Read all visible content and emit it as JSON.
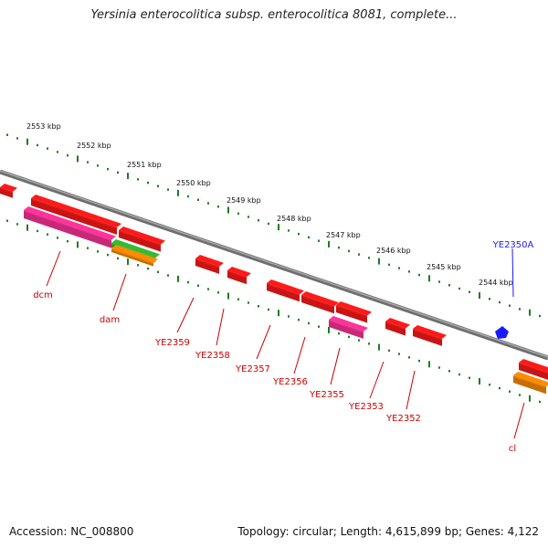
{
  "title": "Yersinia enterocolitica subsp. enterocolitica 8081, complete...",
  "footer": {
    "accession": "Accession: NC_008800",
    "topology": "Topology: circular; Length: 4,615,899 bp; Genes: 4,122"
  },
  "colors": {
    "backbone": "#8a8a8a",
    "tick": "#1e7d1e",
    "gene": "#ff1a1a",
    "gene_label": "#cc0000",
    "pink": "#ff3399",
    "green": "#33bb33",
    "orange": "#ff8c00",
    "blue": "#1a1aff"
  },
  "scale_labels": [
    "2553 kbp",
    "2552 kbp",
    "2551 kbp",
    "2550 kbp",
    "2549 kbp",
    "2548 kbp",
    "2547 kbp",
    "2546 kbp",
    "2545 kbp",
    "2544 kbp"
  ],
  "gene_labels": [
    "dcm",
    "dam",
    "YE2359",
    "YE2358",
    "YE2357",
    "YE2356",
    "YE2355",
    "YE2353",
    "YE2352",
    "cl"
  ],
  "top_label": "YE2350A"
}
